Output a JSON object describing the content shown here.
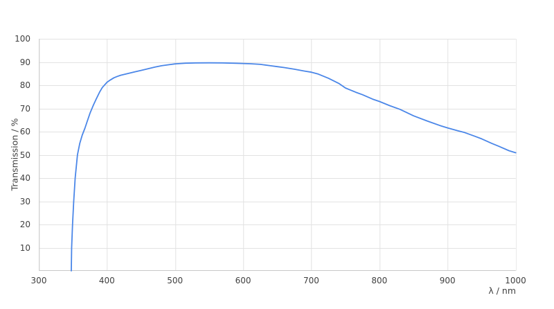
{
  "chart_data": {
    "type": "line",
    "title": "",
    "xlabel": "λ / nm",
    "ylabel": "Transmission / %",
    "xlim": [
      300,
      1000
    ],
    "ylim": [
      0,
      100
    ],
    "x_ticks": [
      300,
      400,
      500,
      600,
      700,
      800,
      900,
      1000
    ],
    "y_ticks": [
      10,
      20,
      30,
      40,
      50,
      60,
      70,
      80,
      90,
      100
    ],
    "grid": true,
    "legend": false,
    "series": [
      {
        "name": "Transmission",
        "points": [
          [
            347.5,
            0
          ],
          [
            348.0,
            10
          ],
          [
            349.3,
            20
          ],
          [
            351.0,
            30
          ],
          [
            353.2,
            40
          ],
          [
            356.5,
            50
          ],
          [
            360.0,
            55
          ],
          [
            363.5,
            58.5
          ],
          [
            367.5,
            61.5
          ],
          [
            371.0,
            64.5
          ],
          [
            375.0,
            68.0
          ],
          [
            380.0,
            71.5
          ],
          [
            384.0,
            74.0
          ],
          [
            389.0,
            77.0
          ],
          [
            393.0,
            79.0
          ],
          [
            400.0,
            81.3
          ],
          [
            405.0,
            82.3
          ],
          [
            410.0,
            83.2
          ],
          [
            415.0,
            83.8
          ],
          [
            420.0,
            84.3
          ],
          [
            430.0,
            85.0
          ],
          [
            440.0,
            85.7
          ],
          [
            450.0,
            86.4
          ],
          [
            460.0,
            87.1
          ],
          [
            470.0,
            87.8
          ],
          [
            480.0,
            88.4
          ],
          [
            490.0,
            88.8
          ],
          [
            500.0,
            89.2
          ],
          [
            515.0,
            89.5
          ],
          [
            530.0,
            89.6
          ],
          [
            550.0,
            89.65
          ],
          [
            570.0,
            89.6
          ],
          [
            590.0,
            89.45
          ],
          [
            610.0,
            89.25
          ],
          [
            625.0,
            89.0
          ],
          [
            640.0,
            88.4
          ],
          [
            650.0,
            88.0
          ],
          [
            660.0,
            87.6
          ],
          [
            675.0,
            86.9
          ],
          [
            690.0,
            86.1
          ],
          [
            700.0,
            85.6
          ],
          [
            710.0,
            84.8
          ],
          [
            725.0,
            83.0
          ],
          [
            740.0,
            80.8
          ],
          [
            750.0,
            78.8
          ],
          [
            765.0,
            77.0
          ],
          [
            775.0,
            75.9
          ],
          [
            790.0,
            74.0
          ],
          [
            800.0,
            73.0
          ],
          [
            815.0,
            71.2
          ],
          [
            830.0,
            69.6
          ],
          [
            850.0,
            66.8
          ],
          [
            870.0,
            64.6
          ],
          [
            890.0,
            62.5
          ],
          [
            900.0,
            61.6
          ],
          [
            915.0,
            60.4
          ],
          [
            925.0,
            59.6
          ],
          [
            940.0,
            58.0
          ],
          [
            950.0,
            56.9
          ],
          [
            965.0,
            54.9
          ],
          [
            975.0,
            53.7
          ],
          [
            990.0,
            51.8
          ],
          [
            1000.0,
            50.9
          ]
        ]
      }
    ]
  },
  "colors": {
    "line": "#4a86e8",
    "grid": "#e2e2e2",
    "axis": "#c8c8c8",
    "text": "#3f3f3f",
    "background": "#ffffff"
  }
}
